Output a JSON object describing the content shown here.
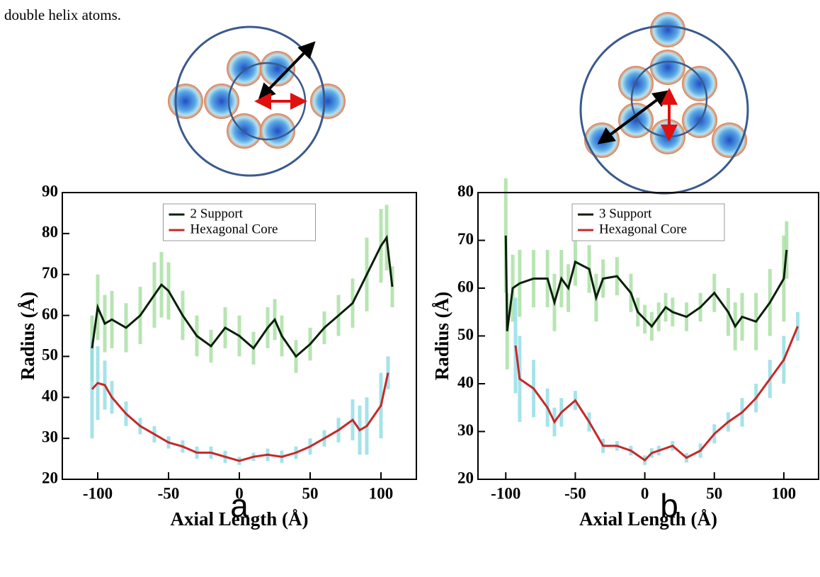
{
  "caption_fragment": "double helix atoms.",
  "panel_labels": [
    "a",
    "b"
  ],
  "chart_data": [
    {
      "type": "line",
      "xlabel": "Axial Length (Å)",
      "ylabel": "Radius (Å)",
      "xlim": [
        -125,
        125
      ],
      "ylim": [
        20,
        90
      ],
      "xticks": [
        -100,
        -50,
        0,
        50,
        100
      ],
      "yticks": [
        20,
        30,
        40,
        50,
        60,
        70,
        80,
        90
      ],
      "legend": "top-center",
      "series": [
        {
          "name": "2 Support",
          "color": "#0b1f0b",
          "error_color": "#a6dfa0",
          "x": [
            -104,
            -100,
            -95,
            -90,
            -80,
            -70,
            -60,
            -55,
            -50,
            -40,
            -30,
            -20,
            -10,
            0,
            10,
            20,
            25,
            30,
            40,
            50,
            60,
            70,
            80,
            90,
            100,
            104,
            108
          ],
          "values": [
            52,
            62,
            58,
            59,
            57,
            60,
            65,
            67.5,
            66,
            60,
            55,
            52.5,
            57,
            55,
            52,
            57,
            59,
            55,
            50,
            53,
            57,
            60,
            63,
            70,
            77,
            79,
            67
          ],
          "errors": [
            8,
            8,
            7,
            7,
            6,
            7,
            8,
            8,
            7,
            6,
            5,
            4,
            5,
            5,
            4,
            5,
            5,
            5,
            4,
            4,
            4,
            5,
            6,
            9,
            9,
            8,
            5
          ]
        },
        {
          "name": "Hexagonal Core",
          "color": "#c62828",
          "error_color": "#8fdde6",
          "x": [
            -104,
            -100,
            -95,
            -90,
            -80,
            -70,
            -60,
            -50,
            -40,
            -30,
            -20,
            -10,
            0,
            10,
            20,
            30,
            40,
            50,
            60,
            70,
            80,
            85,
            90,
            100,
            105
          ],
          "values": [
            42,
            43.5,
            43,
            40,
            36,
            33,
            31,
            29,
            28,
            26.5,
            26.5,
            25.5,
            24.5,
            25.5,
            26,
            25.5,
            26.5,
            28,
            30,
            32,
            34.5,
            32,
            33,
            38,
            46
          ],
          "errors": [
            12,
            9,
            6,
            4,
            3,
            2,
            2,
            1.5,
            1.5,
            1.5,
            1.5,
            1.5,
            1,
            1,
            1.5,
            1.5,
            1.5,
            2,
            2,
            3,
            5,
            6,
            7,
            8,
            4
          ]
        }
      ]
    },
    {
      "type": "line",
      "xlabel": "Axial Length (Å)",
      "ylabel": "Radius (Å)",
      "xlim": [
        -120,
        125
      ],
      "ylim": [
        20,
        80
      ],
      "xticks": [
        -100,
        -50,
        0,
        50,
        100
      ],
      "yticks": [
        20,
        30,
        40,
        50,
        60,
        70,
        80
      ],
      "legend": "top-center",
      "series": [
        {
          "name": "3 Support",
          "color": "#0b1f0b",
          "error_color": "#a6dfa0",
          "x": [
            -100,
            -99,
            -95,
            -90,
            -80,
            -70,
            -65,
            -60,
            -55,
            -50,
            -40,
            -35,
            -30,
            -20,
            -10,
            -5,
            0,
            5,
            10,
            15,
            20,
            30,
            40,
            50,
            60,
            65,
            70,
            80,
            90,
            100,
            102
          ],
          "values": [
            71,
            51,
            60,
            61,
            62,
            62,
            57,
            62,
            60,
            65.5,
            64,
            58,
            62,
            62.5,
            59,
            55,
            53.5,
            52,
            54,
            56,
            55,
            54,
            56,
            59,
            55,
            52,
            54,
            53,
            57,
            62,
            68
          ],
          "errors": [
            12,
            8,
            7,
            7,
            6,
            6,
            6,
            6,
            5,
            5,
            5,
            5,
            4,
            4,
            4,
            3,
            3,
            3,
            3,
            3,
            3,
            3,
            3,
            4,
            5,
            5,
            5,
            6,
            7,
            9,
            6
          ]
        },
        {
          "name": "Hexagonal Core",
          "color": "#c62828",
          "error_color": "#8fdde6",
          "x": [
            -93,
            -90,
            -80,
            -70,
            -65,
            -60,
            -50,
            -40,
            -30,
            -20,
            -10,
            0,
            5,
            10,
            20,
            30,
            40,
            50,
            60,
            70,
            80,
            90,
            100,
            110
          ],
          "values": [
            48,
            41,
            39,
            35,
            32,
            34,
            36.5,
            32,
            27,
            27,
            26,
            24,
            25.5,
            26,
            27,
            24.5,
            26,
            29.5,
            32,
            34,
            37,
            41,
            45,
            52
          ],
          "errors": [
            10,
            9,
            6,
            4,
            3,
            3,
            2,
            2,
            1.5,
            1,
            1,
            1,
            1,
            1,
            1,
            1,
            1.5,
            2,
            2,
            3,
            3,
            4,
            5,
            3
          ]
        }
      ]
    }
  ]
}
